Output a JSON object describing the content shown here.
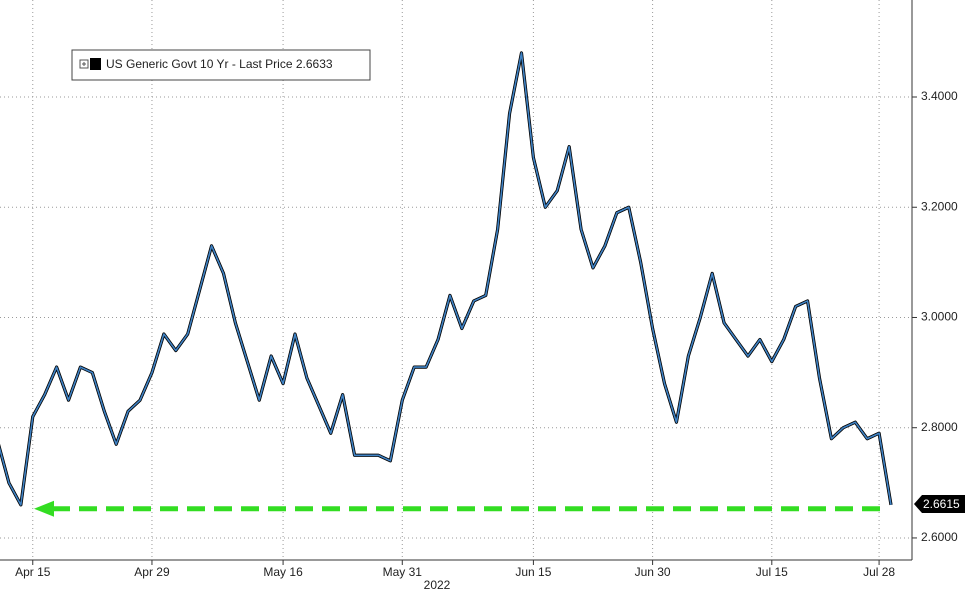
{
  "chart_data": {
    "type": "line",
    "categories": [
      null,
      null,
      null,
      "Apr 15",
      null,
      null,
      null,
      null,
      null,
      null,
      null,
      null,
      null,
      "Apr 29",
      null,
      null,
      null,
      null,
      null,
      null,
      null,
      null,
      null,
      null,
      "May 16",
      null,
      null,
      null,
      null,
      null,
      null,
      null,
      null,
      null,
      "May 31",
      null,
      null,
      null,
      null,
      null,
      null,
      null,
      null,
      null,
      null,
      "Jun 15",
      null,
      null,
      null,
      null,
      null,
      null,
      null,
      null,
      null,
      "Jun 30",
      null,
      null,
      null,
      null,
      null,
      null,
      null,
      null,
      null,
      "Jul 15",
      null,
      null,
      null,
      null,
      null,
      null,
      null,
      null,
      "Jul 28",
      null
    ],
    "x_sublabel": "2022",
    "series": [
      {
        "name": "US Generic Govt 10 Yr - Last Price 2.6633",
        "color": "#3f82c4",
        "values": [
          2.78,
          2.7,
          2.66,
          2.82,
          2.86,
          2.91,
          2.85,
          2.91,
          2.9,
          2.83,
          2.77,
          2.83,
          2.85,
          2.9,
          2.97,
          2.94,
          2.97,
          3.05,
          3.13,
          3.08,
          2.99,
          2.92,
          2.85,
          2.93,
          2.88,
          2.97,
          2.89,
          2.84,
          2.79,
          2.86,
          2.75,
          2.75,
          2.75,
          2.74,
          2.85,
          2.91,
          2.91,
          2.96,
          3.04,
          2.98,
          3.03,
          3.04,
          3.16,
          3.37,
          3.48,
          3.29,
          3.2,
          3.23,
          3.31,
          3.16,
          3.09,
          3.13,
          3.19,
          3.2,
          3.1,
          2.98,
          2.88,
          2.81,
          2.93,
          3.0,
          3.08,
          2.99,
          2.96,
          2.93,
          2.96,
          2.92,
          2.96,
          3.02,
          3.03,
          2.89,
          2.78,
          2.8,
          2.81,
          2.78,
          2.79,
          2.66
        ]
      }
    ],
    "ylim": [
      2.56,
      3.576
    ],
    "yticks": [
      {
        "value": 2.6,
        "label": "2.6000"
      },
      {
        "value": 2.8,
        "label": "2.8000"
      },
      {
        "value": 3.0,
        "label": "3.0000"
      },
      {
        "value": 3.2,
        "label": "3.2000"
      },
      {
        "value": 3.4,
        "label": "3.4000"
      }
    ],
    "grid": true,
    "last_price_tag": {
      "value": 2.6615,
      "label": "2.6615"
    },
    "reference_line": {
      "value": 2.653,
      "color": "#33dd22"
    }
  }
}
